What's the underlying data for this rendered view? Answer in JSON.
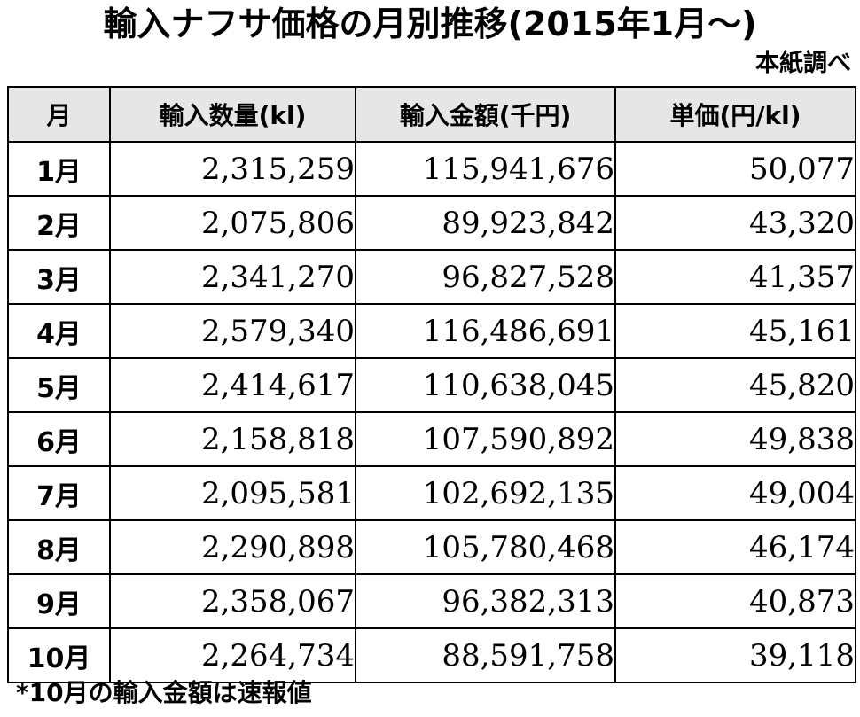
{
  "title": "輸入ナフサ価格の月別推移(2015年1月〜)",
  "source": "本紙調べ",
  "table": {
    "headers": [
      "月",
      "輸入数量(kl)",
      "輸入金額(千円)",
      "単価(円/kl)"
    ],
    "rows": [
      {
        "month": "1月",
        "volume": "2,315,259",
        "amount": "115,941,676",
        "unit_price": "50,077"
      },
      {
        "month": "2月",
        "volume": "2,075,806",
        "amount": "89,923,842",
        "unit_price": "43,320"
      },
      {
        "month": "3月",
        "volume": "2,341,270",
        "amount": "96,827,528",
        "unit_price": "41,357"
      },
      {
        "month": "4月",
        "volume": "2,579,340",
        "amount": "116,486,691",
        "unit_price": "45,161"
      },
      {
        "month": "5月",
        "volume": "2,414,617",
        "amount": "110,638,045",
        "unit_price": "45,820"
      },
      {
        "month": "6月",
        "volume": "2,158,818",
        "amount": "107,590,892",
        "unit_price": "49,838"
      },
      {
        "month": "7月",
        "volume": "2,095,581",
        "amount": "102,692,135",
        "unit_price": "49,004"
      },
      {
        "month": "8月",
        "volume": "2,290,898",
        "amount": "105,780,468",
        "unit_price": "46,174"
      },
      {
        "month": "9月",
        "volume": "2,358,067",
        "amount": "96,382,313",
        "unit_price": "40,873"
      },
      {
        "month": "10月",
        "volume": "2,264,734",
        "amount": "88,591,758",
        "unit_price": "39,118"
      }
    ]
  },
  "note": "*10月の輸入金額は速報値"
}
